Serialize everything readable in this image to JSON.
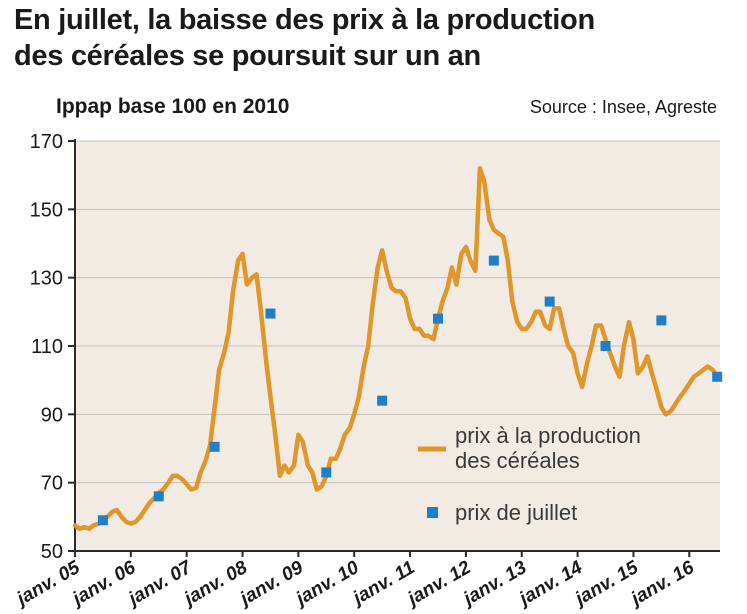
{
  "title_line1": "En juillet, la baisse des prix à la production",
  "title_line2": "des céréales se poursuit sur un an",
  "subtitle": "Ippap base 100 en 2010",
  "source": "Source : Insee, Agreste",
  "colors": {
    "background_plot": "#f1ebe4",
    "line": "#e0962a",
    "marker": "#1f7fc8",
    "grid": "#c9c2bb",
    "axis": "#2b2b2b"
  },
  "chart_data": {
    "type": "line",
    "ylim": [
      50,
      170
    ],
    "xlim": [
      2005.0,
      2016.55
    ],
    "yticks": [
      50,
      70,
      90,
      110,
      130,
      150,
      170
    ],
    "ytick_labels": [
      "50",
      "70",
      "90",
      "110",
      "130",
      "150",
      "170"
    ],
    "x_ticks": [
      {
        "x": 2005.0,
        "label": "janv. 05"
      },
      {
        "x": 2006.0,
        "label": "janv. 06"
      },
      {
        "x": 2007.0,
        "label": "janv. 07"
      },
      {
        "x": 2008.0,
        "label": "janv. 08"
      },
      {
        "x": 2009.0,
        "label": "janv. 09"
      },
      {
        "x": 2010.0,
        "label": "janv. 10"
      },
      {
        "x": 2011.0,
        "label": "janv. 11"
      },
      {
        "x": 2012.0,
        "label": "janv. 12"
      },
      {
        "x": 2013.0,
        "label": "janv. 13"
      },
      {
        "x": 2014.0,
        "label": "janv. 14"
      },
      {
        "x": 2015.0,
        "label": "janv. 15"
      },
      {
        "x": 2016.0,
        "label": "janv. 16"
      }
    ],
    "grid": true,
    "legend": "bottom-right",
    "series": [
      {
        "name": "prix à la production des céréales",
        "kind": "line",
        "points": [
          [
            2005.0,
            57.5
          ],
          [
            2005.08,
            56.5
          ],
          [
            2005.17,
            57
          ],
          [
            2005.25,
            56.5
          ],
          [
            2005.33,
            57.5
          ],
          [
            2005.42,
            58
          ],
          [
            2005.5,
            59
          ],
          [
            2005.58,
            60
          ],
          [
            2005.67,
            61.5
          ],
          [
            2005.75,
            62
          ],
          [
            2005.83,
            60
          ],
          [
            2005.92,
            58.5
          ],
          [
            2006.0,
            58
          ],
          [
            2006.08,
            58.5
          ],
          [
            2006.17,
            60
          ],
          [
            2006.25,
            62
          ],
          [
            2006.33,
            64
          ],
          [
            2006.42,
            65.5
          ],
          [
            2006.5,
            67
          ],
          [
            2006.58,
            68
          ],
          [
            2006.67,
            70
          ],
          [
            2006.75,
            72
          ],
          [
            2006.83,
            72
          ],
          [
            2006.92,
            71
          ],
          [
            2007.0,
            69.5
          ],
          [
            2007.08,
            68
          ],
          [
            2007.17,
            68.5
          ],
          [
            2007.25,
            73
          ],
          [
            2007.33,
            76
          ],
          [
            2007.42,
            81
          ],
          [
            2007.5,
            92
          ],
          [
            2007.58,
            103
          ],
          [
            2007.67,
            108
          ],
          [
            2007.75,
            114
          ],
          [
            2007.83,
            126
          ],
          [
            2007.92,
            135
          ],
          [
            2008.0,
            137
          ],
          [
            2008.08,
            128
          ],
          [
            2008.17,
            130
          ],
          [
            2008.25,
            131
          ],
          [
            2008.33,
            120
          ],
          [
            2008.42,
            106
          ],
          [
            2008.5,
            95
          ],
          [
            2008.58,
            85
          ],
          [
            2008.67,
            72
          ],
          [
            2008.75,
            75
          ],
          [
            2008.83,
            73
          ],
          [
            2008.92,
            75
          ],
          [
            2009.0,
            84
          ],
          [
            2009.08,
            82
          ],
          [
            2009.17,
            75
          ],
          [
            2009.25,
            73
          ],
          [
            2009.33,
            68
          ],
          [
            2009.42,
            69
          ],
          [
            2009.5,
            72
          ],
          [
            2009.58,
            77
          ],
          [
            2009.67,
            77
          ],
          [
            2009.75,
            80
          ],
          [
            2009.83,
            84
          ],
          [
            2009.92,
            86
          ],
          [
            2010.0,
            90
          ],
          [
            2010.08,
            95
          ],
          [
            2010.17,
            104
          ],
          [
            2010.25,
            110
          ],
          [
            2010.33,
            122
          ],
          [
            2010.42,
            133
          ],
          [
            2010.5,
            138
          ],
          [
            2010.58,
            132
          ],
          [
            2010.67,
            127
          ],
          [
            2010.75,
            126
          ],
          [
            2010.83,
            126
          ],
          [
            2010.92,
            124
          ],
          [
            2011.0,
            118
          ],
          [
            2011.08,
            115
          ],
          [
            2011.17,
            115
          ],
          [
            2011.25,
            113
          ],
          [
            2011.33,
            113
          ],
          [
            2011.42,
            112
          ],
          [
            2011.5,
            118
          ],
          [
            2011.58,
            123
          ],
          [
            2011.67,
            127
          ],
          [
            2011.75,
            133
          ],
          [
            2011.83,
            128
          ],
          [
            2011.92,
            137
          ],
          [
            2012.0,
            139
          ],
          [
            2012.08,
            135
          ],
          [
            2012.17,
            132
          ],
          [
            2012.25,
            162
          ],
          [
            2012.33,
            158
          ],
          [
            2012.42,
            147
          ],
          [
            2012.5,
            144
          ],
          [
            2012.58,
            143
          ],
          [
            2012.67,
            142
          ],
          [
            2012.75,
            135
          ],
          [
            2012.83,
            123
          ],
          [
            2012.92,
            117
          ],
          [
            2013.0,
            115
          ],
          [
            2013.08,
            115
          ],
          [
            2013.17,
            117
          ],
          [
            2013.25,
            120
          ],
          [
            2013.33,
            120
          ],
          [
            2013.42,
            116
          ],
          [
            2013.5,
            115
          ],
          [
            2013.58,
            121
          ],
          [
            2013.67,
            121
          ],
          [
            2013.75,
            115
          ],
          [
            2013.83,
            110
          ],
          [
            2013.92,
            108
          ],
          [
            2014.0,
            102
          ],
          [
            2014.08,
            98
          ],
          [
            2014.17,
            105
          ],
          [
            2014.25,
            110
          ],
          [
            2014.33,
            116
          ],
          [
            2014.42,
            116
          ],
          [
            2014.5,
            112
          ],
          [
            2014.58,
            108
          ],
          [
            2014.67,
            104
          ],
          [
            2014.75,
            101
          ],
          [
            2014.83,
            110
          ],
          [
            2014.92,
            117
          ],
          [
            2015.0,
            112
          ],
          [
            2015.08,
            102
          ],
          [
            2015.17,
            104
          ],
          [
            2015.25,
            107
          ],
          [
            2015.33,
            102
          ],
          [
            2015.42,
            97
          ],
          [
            2015.5,
            92
          ],
          [
            2015.58,
            90
          ],
          [
            2015.67,
            91
          ],
          [
            2015.75,
            93
          ],
          [
            2015.83,
            95
          ],
          [
            2015.92,
            97
          ],
          [
            2016.0,
            99
          ],
          [
            2016.08,
            101
          ],
          [
            2016.17,
            102
          ],
          [
            2016.25,
            103
          ],
          [
            2016.33,
            104
          ],
          [
            2016.42,
            103
          ],
          [
            2016.5,
            101
          ]
        ]
      },
      {
        "name": "prix de juillet",
        "kind": "markers",
        "points": [
          [
            2005.5,
            59
          ],
          [
            2006.5,
            66
          ],
          [
            2007.5,
            80.5
          ],
          [
            2008.5,
            119.5
          ],
          [
            2009.5,
            73
          ],
          [
            2010.5,
            94
          ],
          [
            2011.5,
            118
          ],
          [
            2012.5,
            135
          ],
          [
            2013.5,
            123
          ],
          [
            2014.5,
            110
          ],
          [
            2015.5,
            117.5
          ],
          [
            2016.5,
            101
          ]
        ]
      }
    ]
  }
}
